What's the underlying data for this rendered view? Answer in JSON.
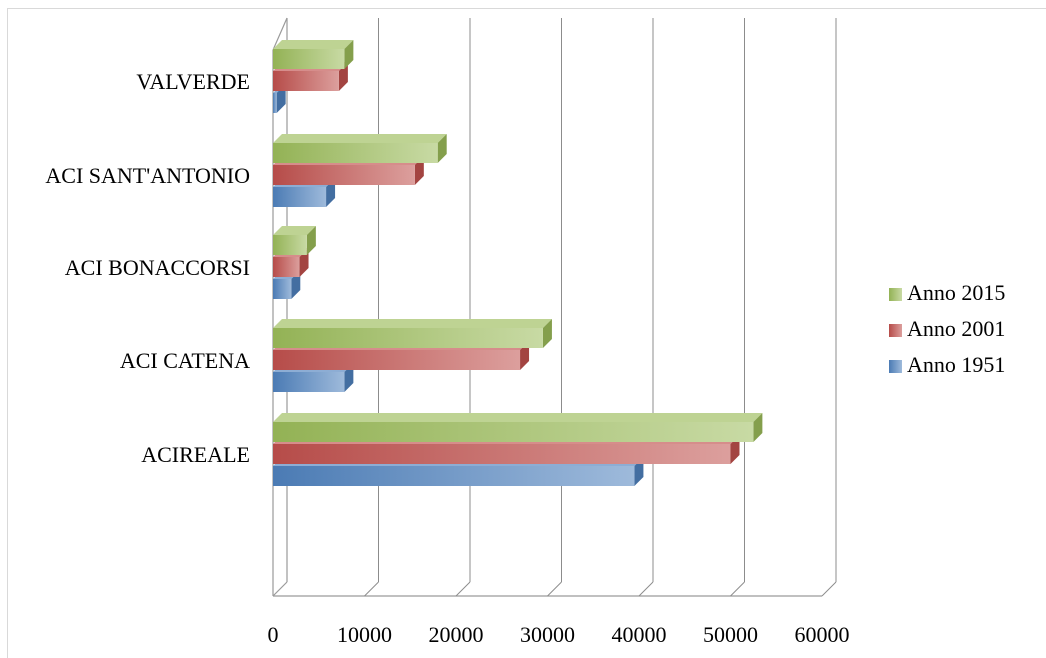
{
  "chart_data": {
    "type": "bar",
    "orientation": "horizontal",
    "style": "3d-clustered",
    "categories": [
      "ACIREALE",
      "ACI CATENA",
      "ACI BONACCORSI",
      "ACI SANT'ANTONIO",
      "VALVERDE"
    ],
    "series": [
      {
        "name": "Anno 1951",
        "color": "#4f81bd",
        "values": [
          39500,
          7800,
          2000,
          5800,
          400
        ]
      },
      {
        "name": "Anno 2001",
        "color": "#c0504d",
        "values": [
          50000,
          27000,
          2900,
          15500,
          7200
        ]
      },
      {
        "name": "Anno 2015",
        "color": "#9bbb59",
        "values": [
          52500,
          29500,
          3700,
          18000,
          7800
        ]
      }
    ],
    "title": "",
    "xlabel": "",
    "ylabel": "",
    "xlim": [
      0,
      60000
    ],
    "x_ticks": [
      "0",
      "10000",
      "20000",
      "30000",
      "40000",
      "50000",
      "60000"
    ],
    "grid": true,
    "legend_position": "right"
  }
}
